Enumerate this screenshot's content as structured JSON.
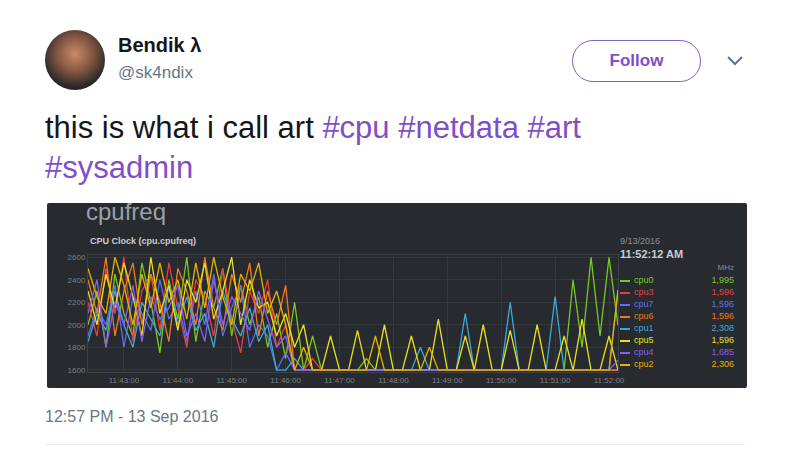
{
  "tweet": {
    "author": {
      "name": "Bendik λ",
      "handle": "@sk4ndix"
    },
    "button": "Follow",
    "text": "this is what i call art",
    "hashtags": [
      "#cpu",
      "#netdata",
      "#art",
      "#sysadmin"
    ],
    "timestamp": "12:57 PM - 13 Sep 2016"
  },
  "chart_data": {
    "type": "line",
    "heading": "cpufreq",
    "title": "CPU Clock (cpu.cpufreq)",
    "legend_header": {
      "date": "9/13/2016",
      "time": "11:52:12 AM",
      "units": "MHz"
    },
    "legend": "right",
    "grid": true,
    "categories": [
      null,
      null,
      null,
      null,
      "11:43:00",
      null,
      null,
      null,
      null,
      null,
      "11:44:00",
      null,
      null,
      null,
      null,
      null,
      "11:45:00",
      null,
      null,
      null,
      null,
      null,
      "11:46:00",
      null,
      null,
      null,
      null,
      null,
      "11:47:00",
      null,
      null,
      null,
      null,
      null,
      "11:48:00",
      null,
      null,
      null,
      null,
      null,
      "11:49:00",
      null,
      null,
      null,
      null,
      null,
      "11:50:00",
      null,
      null,
      null,
      null,
      null,
      "11:51:00",
      null,
      null,
      null,
      null,
      null,
      "11:52:00",
      null
    ],
    "ylim": [
      1580,
      2620
    ],
    "yticks": [
      1600,
      1800,
      2000,
      2200,
      2400,
      2600
    ],
    "series": [
      {
        "name": "cpu0",
        "color": "#7cc623",
        "current": {
          "value": 1995,
          "label": "1,995"
        },
        "values": [
          2000,
          2300,
          1800,
          2450,
          2100,
          1900,
          2550,
          2200,
          1750,
          2400,
          2050,
          2600,
          1850,
          2300,
          2150,
          2500,
          1900,
          2350,
          2000,
          2250,
          1800,
          2100,
          1700,
          2200,
          1596,
          1900,
          1596,
          1596,
          1596,
          1596,
          1596,
          1700,
          1596,
          1596,
          1596,
          1596,
          1596,
          1596,
          1596,
          1596,
          1596,
          1596,
          1596,
          1596,
          1596,
          1596,
          1596,
          1596,
          1596,
          1596,
          1596,
          1596,
          1596,
          1596,
          2400,
          1800,
          2600,
          1900,
          2600,
          1995
        ]
      },
      {
        "name": "cpu3",
        "color": "#ee3b3b",
        "current": {
          "value": 1596,
          "label": "1,596"
        },
        "values": [
          2200,
          1900,
          2500,
          2100,
          2600,
          1850,
          2300,
          2450,
          1950,
          2550,
          2150,
          1800,
          2400,
          2250,
          1900,
          2500,
          2050,
          1750,
          2300,
          2100,
          2400,
          1800,
          2000,
          1596,
          1596,
          1700,
          1596,
          1596,
          1596,
          1596,
          1596,
          1596,
          1596,
          1596,
          1596,
          1596,
          1596,
          1596,
          1596,
          1596,
          1596,
          1596,
          1596,
          1596,
          1596,
          1596,
          1596,
          1596,
          1596,
          1596,
          1596,
          1596,
          1596,
          1596,
          1596,
          1596,
          1596,
          1596,
          1596,
          1596
        ]
      },
      {
        "name": "cpu7",
        "color": "#5b6ff0",
        "current": {
          "value": 1596,
          "label": "1,596"
        },
        "values": [
          1900,
          2150,
          2000,
          2350,
          1800,
          2250,
          2100,
          1950,
          2400,
          2050,
          2200,
          1850,
          2300,
          2000,
          2450,
          1900,
          2150,
          2350,
          1800,
          2000,
          1900,
          1596,
          1750,
          1596,
          1596,
          1596,
          1596,
          1596,
          1596,
          1596,
          1596,
          1596,
          1596,
          1596,
          1596,
          1596,
          1596,
          1596,
          1596,
          1596,
          1596,
          1596,
          1596,
          1596,
          1596,
          1596,
          1596,
          1596,
          1596,
          1596,
          1596,
          1596,
          1596,
          1596,
          1596,
          1596,
          1596,
          1596,
          1596,
          1596
        ]
      },
      {
        "name": "cpu6",
        "color": "#f07a22",
        "current": {
          "value": 1596,
          "label": "1,596"
        },
        "values": [
          2400,
          2100,
          2600,
          1900,
          2300,
          2550,
          2000,
          2450,
          2200,
          1850,
          2500,
          2300,
          2000,
          2600,
          2150,
          1950,
          2450,
          2200,
          2550,
          1900,
          2300,
          2000,
          2350,
          1596,
          1596,
          1596,
          1596,
          1596,
          1596,
          1596,
          1596,
          1596,
          1596,
          1596,
          1596,
          1596,
          1596,
          1596,
          1596,
          1596,
          1596,
          1596,
          1596,
          1596,
          1596,
          1596,
          1596,
          1596,
          1596,
          1596,
          1596,
          1596,
          1596,
          1596,
          1596,
          1596,
          1596,
          1596,
          1596,
          1596
        ]
      },
      {
        "name": "cpu1",
        "color": "#3fa7d6",
        "current": {
          "value": 2308,
          "label": "2,308"
        },
        "values": [
          1850,
          2100,
          1950,
          2300,
          2000,
          1800,
          2200,
          2050,
          1900,
          2350,
          2000,
          2250,
          1950,
          2100,
          1800,
          2300,
          2050,
          1900,
          2150,
          1850,
          2000,
          1596,
          1596,
          1700,
          1596,
          1596,
          1596,
          1596,
          1596,
          1596,
          1596,
          1596,
          1596,
          1596,
          1596,
          1596,
          1596,
          1800,
          1596,
          1596,
          1596,
          1596,
          2100,
          1596,
          1596,
          1596,
          1596,
          2200,
          1596,
          1596,
          1596,
          1596,
          2250,
          1596,
          1596,
          1596,
          1596,
          1596,
          1596,
          2308
        ]
      },
      {
        "name": "cpu5",
        "color": "#e8e020",
        "current": {
          "value": 1596,
          "label": "1,596"
        },
        "values": [
          2300,
          2000,
          2450,
          2150,
          2550,
          2250,
          1900,
          2600,
          2100,
          2350,
          1950,
          2400,
          2200,
          2550,
          2050,
          2300,
          2600,
          2000,
          2400,
          2150,
          2200,
          1900,
          2100,
          1800,
          2000,
          1596,
          1596,
          1900,
          1596,
          1596,
          1950,
          1596,
          1596,
          2000,
          1596,
          1596,
          1900,
          1596,
          1596,
          2050,
          1596,
          1596,
          1900,
          1596,
          2000,
          1596,
          1596,
          1950,
          1596,
          1596,
          2000,
          1596,
          1596,
          1900,
          1596,
          2050,
          1596,
          1596,
          1900,
          1596
        ]
      },
      {
        "name": "cpu4",
        "color": "#8a5cf0",
        "current": {
          "value": 1685,
          "label": "1,685"
        },
        "values": [
          2100,
          2400,
          1800,
          2200,
          2000,
          2350,
          1850,
          2250,
          2050,
          2150,
          2350,
          1900,
          2100,
          1850,
          2400,
          2000,
          2250,
          2100,
          1950,
          2300,
          2050,
          1800,
          1900,
          1596,
          1596,
          1596,
          1596,
          1596,
          1596,
          1596,
          1596,
          1596,
          1596,
          1596,
          1596,
          1596,
          1596,
          1596,
          1596,
          1596,
          1596,
          1596,
          1596,
          1596,
          1596,
          1596,
          1596,
          1596,
          1596,
          1596,
          1596,
          1596,
          1596,
          1596,
          1596,
          1596,
          1596,
          1596,
          1596,
          1685
        ]
      },
      {
        "name": "cpu2",
        "color": "#e8b000",
        "current": {
          "value": 2306,
          "label": "2,306"
        },
        "values": [
          2500,
          2250,
          2100,
          2600,
          2350,
          2000,
          2450,
          2150,
          2550,
          2200,
          2400,
          2050,
          2550,
          2150,
          2600,
          2250,
          2000,
          2450,
          2300,
          2550,
          2100,
          2300,
          2000,
          1596,
          1800,
          1596,
          1596,
          1596,
          1596,
          1596,
          1596,
          1596,
          1900,
          1596,
          1596,
          1596,
          1596,
          1596,
          1800,
          1596,
          1596,
          1596,
          1596,
          1596,
          1596,
          1596,
          1596,
          1596,
          1596,
          1596,
          1596,
          1596,
          1596,
          1596,
          1596,
          1596,
          1596,
          1596,
          1596,
          2306
        ]
      }
    ]
  }
}
